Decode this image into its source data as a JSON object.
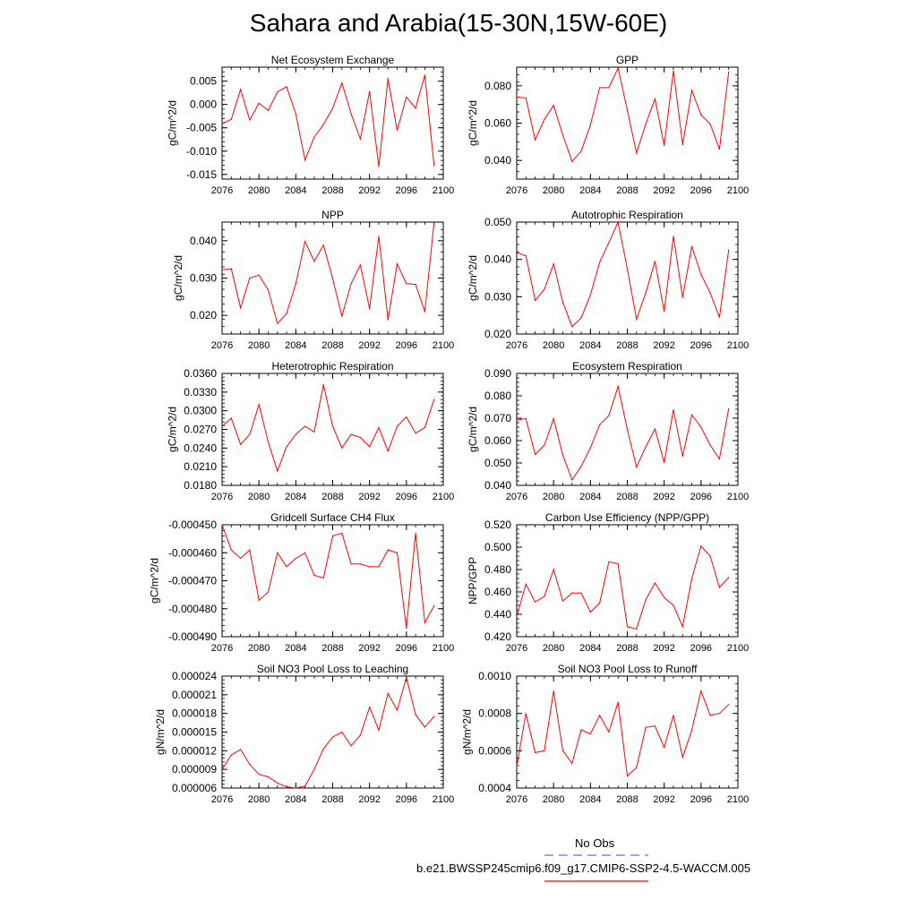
{
  "title": "Sahara and Arabia(15-30N,15W-60E)",
  "legend": {
    "obs_label": "No Obs",
    "obs_color": "#6a6ad8",
    "model_label": "b.e21.BWSSP245cmip6.f09_g17.CMIP6-SSP2-4.5-WACCM.005",
    "model_color": "#ff0000"
  },
  "chart_data": [
    {
      "type": "line",
      "title": "Net Ecosystem Exchange",
      "ylabel": "gC/m^2/d",
      "xlim": [
        2076,
        2100
      ],
      "ylim": [
        -0.016,
        0.008
      ],
      "xticks": [
        2076,
        2080,
        2084,
        2088,
        2092,
        2096,
        2100
      ],
      "xtick_labels": [
        "2076",
        "2080",
        "2084",
        "2088",
        "2092",
        "2096",
        "2100"
      ],
      "yticks": [
        -0.015,
        -0.01,
        -0.005,
        0.0,
        0.005
      ],
      "ytick_labels": [
        "-0.015",
        "-0.010",
        "-0.005",
        "0.000",
        "0.005"
      ],
      "x": [
        2076,
        2077,
        2078,
        2079,
        2080,
        2081,
        2082,
        2083,
        2084,
        2085,
        2086,
        2087,
        2088,
        2089,
        2090,
        2091,
        2092,
        2093,
        2094,
        2095,
        2096,
        2097,
        2098,
        2099
      ],
      "values": [
        -0.0041,
        -0.0032,
        0.0032,
        -0.0033,
        0.0003,
        -0.0013,
        0.0027,
        0.0038,
        -0.002,
        -0.0119,
        -0.007,
        -0.0043,
        -0.0008,
        0.0046,
        -0.002,
        -0.0074,
        0.0028,
        -0.0133,
        0.0056,
        -0.0056,
        0.0016,
        -0.0008,
        0.0063,
        -0.0131
      ]
    },
    {
      "type": "line",
      "title": "GPP",
      "ylabel": "gC/m^2/d",
      "xlim": [
        2076,
        2100
      ],
      "ylim": [
        0.03,
        0.09
      ],
      "xticks": [
        2076,
        2080,
        2084,
        2088,
        2092,
        2096,
        2100
      ],
      "xtick_labels": [
        "2076",
        "2080",
        "2084",
        "2088",
        "2092",
        "2096",
        "2100"
      ],
      "yticks": [
        0.04,
        0.06,
        0.08
      ],
      "ytick_labels": [
        "0.040",
        "0.060",
        "0.080"
      ],
      "x": [
        2076,
        2077,
        2078,
        2079,
        2080,
        2081,
        2082,
        2083,
        2084,
        2085,
        2086,
        2087,
        2088,
        2089,
        2090,
        2091,
        2092,
        2093,
        2094,
        2095,
        2096,
        2097,
        2098,
        2099
      ],
      "values": [
        0.074,
        0.0735,
        0.051,
        0.062,
        0.0695,
        0.0535,
        0.0395,
        0.045,
        0.059,
        0.079,
        0.079,
        0.0895,
        0.067,
        0.044,
        0.0595,
        0.073,
        0.048,
        0.088,
        0.0485,
        0.0775,
        0.0645,
        0.0595,
        0.046,
        0.0875
      ]
    },
    {
      "type": "line",
      "title": "NPP",
      "ylabel": "gC/m^2/d",
      "xlim": [
        2076,
        2100
      ],
      "ylim": [
        0.015,
        0.045
      ],
      "xticks": [
        2076,
        2080,
        2084,
        2088,
        2092,
        2096,
        2100
      ],
      "xtick_labels": [
        "2076",
        "2080",
        "2084",
        "2088",
        "2092",
        "2096",
        "2100"
      ],
      "yticks": [
        0.02,
        0.03,
        0.04
      ],
      "ytick_labels": [
        "0.020",
        "0.030",
        "0.040"
      ],
      "x": [
        2076,
        2077,
        2078,
        2079,
        2080,
        2081,
        2082,
        2083,
        2084,
        2085,
        2086,
        2087,
        2088,
        2089,
        2090,
        2091,
        2092,
        2093,
        2094,
        2095,
        2096,
        2097,
        2098,
        2099
      ],
      "values": [
        0.0322,
        0.0325,
        0.022,
        0.03,
        0.0308,
        0.0268,
        0.0178,
        0.0205,
        0.0285,
        0.0398,
        0.0345,
        0.0388,
        0.0298,
        0.0198,
        0.0285,
        0.0335,
        0.0218,
        0.0412,
        0.0188,
        0.0338,
        0.0285,
        0.0283,
        0.021,
        0.0448
      ]
    },
    {
      "type": "line",
      "title": "Autotrophic Respiration",
      "ylabel": "gC/m^2/d",
      "xlim": [
        2076,
        2100
      ],
      "ylim": [
        0.02,
        0.05
      ],
      "xticks": [
        2076,
        2080,
        2084,
        2088,
        2092,
        2096,
        2100
      ],
      "xtick_labels": [
        "2076",
        "2080",
        "2084",
        "2088",
        "2092",
        "2096",
        "2100"
      ],
      "yticks": [
        0.02,
        0.03,
        0.04,
        0.05
      ],
      "ytick_labels": [
        "0.020",
        "0.030",
        "0.040",
        "0.050"
      ],
      "x": [
        2076,
        2077,
        2078,
        2079,
        2080,
        2081,
        2082,
        2083,
        2084,
        2085,
        2086,
        2087,
        2088,
        2089,
        2090,
        2091,
        2092,
        2093,
        2094,
        2095,
        2096,
        2097,
        2098,
        2099
      ],
      "values": [
        0.0418,
        0.041,
        0.029,
        0.032,
        0.0388,
        0.0285,
        0.022,
        0.0243,
        0.0305,
        0.0392,
        0.0445,
        0.05,
        0.0375,
        0.024,
        0.031,
        0.0395,
        0.026,
        0.0462,
        0.0298,
        0.0435,
        0.036,
        0.031,
        0.0245,
        0.0425
      ]
    },
    {
      "type": "line",
      "title": "Heterotrophic Respiration",
      "ylabel": "gC/m^2/d",
      "xlim": [
        2076,
        2100
      ],
      "ylim": [
        0.018,
        0.036
      ],
      "xticks": [
        2076,
        2080,
        2084,
        2088,
        2092,
        2096,
        2100
      ],
      "xtick_labels": [
        "2076",
        "2080",
        "2084",
        "2088",
        "2092",
        "2096",
        "2100"
      ],
      "yticks": [
        0.018,
        0.021,
        0.024,
        0.027,
        0.03,
        0.033,
        0.036
      ],
      "ytick_labels": [
        "0.0180",
        "0.0210",
        "0.0240",
        "0.0270",
        "0.0300",
        "0.0330",
        "0.0360"
      ],
      "x": [
        2076,
        2077,
        2078,
        2079,
        2080,
        2081,
        2082,
        2083,
        2084,
        2085,
        2086,
        2087,
        2088,
        2089,
        2090,
        2091,
        2092,
        2093,
        2094,
        2095,
        2096,
        2097,
        2098,
        2099
      ],
      "values": [
        0.0275,
        0.0288,
        0.0246,
        0.0262,
        0.031,
        0.025,
        0.0203,
        0.0242,
        0.0262,
        0.0275,
        0.0266,
        0.0342,
        0.0275,
        0.024,
        0.0262,
        0.0257,
        0.0242,
        0.0273,
        0.0235,
        0.0275,
        0.029,
        0.0264,
        0.0273,
        0.0318
      ]
    },
    {
      "type": "line",
      "title": "Ecosystem Respiration",
      "ylabel": "gC/m^2/d",
      "xlim": [
        2076,
        2100
      ],
      "ylim": [
        0.04,
        0.09
      ],
      "xticks": [
        2076,
        2080,
        2084,
        2088,
        2092,
        2096,
        2100
      ],
      "xtick_labels": [
        "2076",
        "2080",
        "2084",
        "2088",
        "2092",
        "2096",
        "2100"
      ],
      "yticks": [
        0.04,
        0.05,
        0.06,
        0.07,
        0.08,
        0.09
      ],
      "ytick_labels": [
        "0.040",
        "0.050",
        "0.060",
        "0.070",
        "0.080",
        "0.090"
      ],
      "x": [
        2076,
        2077,
        2078,
        2079,
        2080,
        2081,
        2082,
        2083,
        2084,
        2085,
        2086,
        2087,
        2088,
        2089,
        2090,
        2091,
        2092,
        2093,
        2094,
        2095,
        2096,
        2097,
        2098,
        2099
      ],
      "values": [
        0.0692,
        0.0698,
        0.0538,
        0.058,
        0.0698,
        0.0535,
        0.0425,
        0.0485,
        0.0568,
        0.067,
        0.0712,
        0.0842,
        0.065,
        0.0482,
        0.0572,
        0.0652,
        0.0502,
        0.0738,
        0.053,
        0.0715,
        0.066,
        0.058,
        0.0518,
        0.0742
      ]
    },
    {
      "type": "line",
      "title": "Gridcell Surface CH4 Flux",
      "ylabel": "gC/m^2/d",
      "xlim": [
        2076,
        2100
      ],
      "ylim": [
        -0.00049,
        -0.00045
      ],
      "xticks": [
        2076,
        2080,
        2084,
        2088,
        2092,
        2096,
        2100
      ],
      "xtick_labels": [
        "2076",
        "2080",
        "2084",
        "2088",
        "2092",
        "2096",
        "2100"
      ],
      "yticks": [
        -0.00049,
        -0.00048,
        -0.00047,
        -0.00046,
        -0.00045
      ],
      "ytick_labels": [
        "-0.000490",
        "-0.000480",
        "-0.000470",
        "-0.000460",
        "-0.000450"
      ],
      "x": [
        2076,
        2077,
        2078,
        2079,
        2080,
        2081,
        2082,
        2083,
        2084,
        2085,
        2086,
        2087,
        2088,
        2089,
        2090,
        2091,
        2092,
        2093,
        2094,
        2095,
        2096,
        2097,
        2098,
        2099
      ],
      "values": [
        -0.00045,
        -0.000459,
        -0.000462,
        -0.000459,
        -0.000477,
        -0.000474,
        -0.00046,
        -0.000465,
        -0.000462,
        -0.00046,
        -0.000468,
        -0.000469,
        -0.000454,
        -0.000453,
        -0.000464,
        -0.000464,
        -0.000465,
        -0.000465,
        -0.000459,
        -0.00046,
        -0.000487,
        -0.000453,
        -0.000485,
        -0.000479
      ]
    },
    {
      "type": "line",
      "title": "Carbon Use Efficiency (NPP/GPP)",
      "ylabel": "NPP/GPP",
      "xlim": [
        2076,
        2100
      ],
      "ylim": [
        0.42,
        0.52
      ],
      "xticks": [
        2076,
        2080,
        2084,
        2088,
        2092,
        2096,
        2100
      ],
      "xtick_labels": [
        "2076",
        "2080",
        "2084",
        "2088",
        "2092",
        "2096",
        "2100"
      ],
      "yticks": [
        0.42,
        0.44,
        0.46,
        0.48,
        0.5,
        0.52
      ],
      "ytick_labels": [
        "0.420",
        "0.440",
        "0.460",
        "0.480",
        "0.500",
        "0.520"
      ],
      "x": [
        2076,
        2077,
        2078,
        2079,
        2080,
        2081,
        2082,
        2083,
        2084,
        2085,
        2086,
        2087,
        2088,
        2089,
        2090,
        2091,
        2092,
        2093,
        2094,
        2095,
        2096,
        2097,
        2098,
        2099
      ],
      "values": [
        0.438,
        0.467,
        0.451,
        0.456,
        0.48,
        0.452,
        0.459,
        0.459,
        0.442,
        0.45,
        0.487,
        0.485,
        0.429,
        0.427,
        0.453,
        0.468,
        0.455,
        0.448,
        0.429,
        0.472,
        0.501,
        0.492,
        0.464,
        0.473
      ]
    },
    {
      "type": "line",
      "title": "Soil NO3 Pool Loss to Leaching",
      "ylabel": "gN/m^2/d",
      "xlim": [
        2076,
        2100
      ],
      "ylim": [
        6e-06,
        2.4e-05
      ],
      "xticks": [
        2076,
        2080,
        2084,
        2088,
        2092,
        2096,
        2100
      ],
      "xtick_labels": [
        "2076",
        "2080",
        "2084",
        "2088",
        "2092",
        "2096",
        "2100"
      ],
      "yticks": [
        6e-06,
        9e-06,
        1.2e-05,
        1.5e-05,
        1.8e-05,
        2.1e-05,
        2.4e-05
      ],
      "ytick_labels": [
        "0.000006",
        "0.000009",
        "0.000012",
        "0.000015",
        "0.000018",
        "0.000021",
        "0.000024"
      ],
      "x": [
        2076,
        2077,
        2078,
        2079,
        2080,
        2081,
        2082,
        2083,
        2084,
        2085,
        2086,
        2087,
        2088,
        2089,
        2090,
        2091,
        2092,
        2093,
        2094,
        2095,
        2096,
        2097,
        2098,
        2099
      ],
      "values": [
        9e-06,
        1.13e-05,
        1.22e-05,
        9.8e-06,
        8.2e-06,
        7.8e-06,
        6.8e-06,
        6.2e-06,
        6e-06,
        6.3e-06,
        9e-06,
        1.23e-05,
        1.42e-05,
        1.5e-05,
        1.28e-05,
        1.45e-05,
        1.9e-05,
        1.53e-05,
        2.12e-05,
        1.85e-05,
        2.38e-05,
        1.78e-05,
        1.58e-05,
        1.75e-05
      ]
    },
    {
      "type": "line",
      "title": "Soil NO3 Pool Loss to Runoff",
      "ylabel": "gN/m^2/d",
      "xlim": [
        2076,
        2100
      ],
      "ylim": [
        0.0004,
        0.001
      ],
      "xticks": [
        2076,
        2080,
        2084,
        2088,
        2092,
        2096,
        2100
      ],
      "xtick_labels": [
        "2076",
        "2080",
        "2084",
        "2088",
        "2092",
        "2096",
        "2100"
      ],
      "yticks": [
        0.0004,
        0.0006,
        0.0008,
        0.001
      ],
      "ytick_labels": [
        "0.0004",
        "0.0006",
        "0.0008",
        "0.0010"
      ],
      "x": [
        2076,
        2077,
        2078,
        2079,
        2080,
        2081,
        2082,
        2083,
        2084,
        2085,
        2086,
        2087,
        2088,
        2089,
        2090,
        2091,
        2092,
        2093,
        2094,
        2095,
        2096,
        2097,
        2098,
        2099
      ],
      "values": [
        0.000515,
        0.0008,
        0.00059,
        0.0006,
        0.00092,
        0.0006,
        0.000532,
        0.000712,
        0.00069,
        0.00079,
        0.0007,
        0.00086,
        0.000465,
        0.00051,
        0.000725,
        0.000732,
        0.000618,
        0.00079,
        0.000565,
        0.00071,
        0.00092,
        0.00079,
        0.0008,
        0.000848
      ]
    }
  ]
}
